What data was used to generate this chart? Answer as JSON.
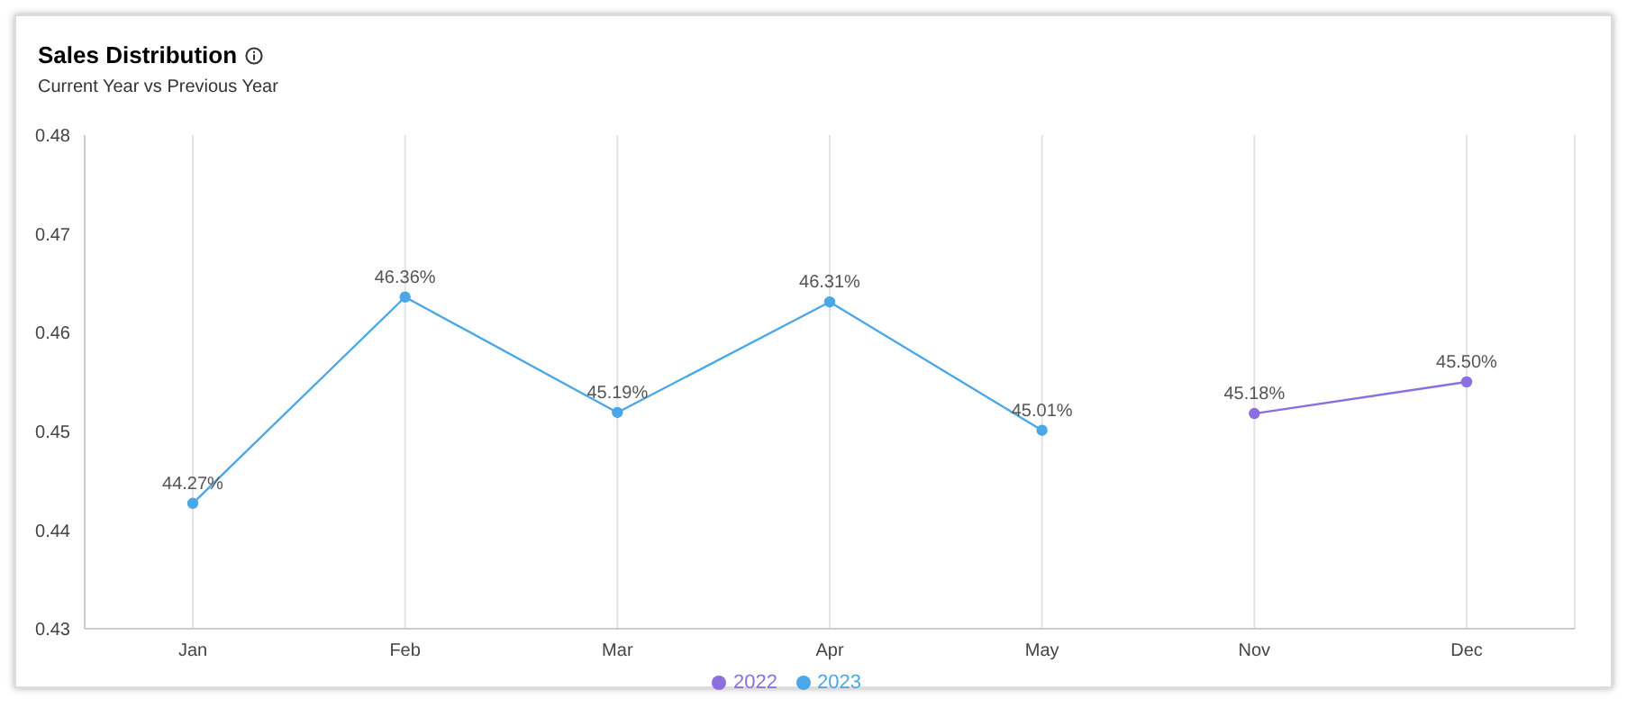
{
  "chart_data": {
    "type": "line",
    "title": "Sales Distribution",
    "subtitle": "Current Year vs Previous Year",
    "categories": [
      "Jan",
      "Feb",
      "Mar",
      "Apr",
      "May",
      "Nov",
      "Dec"
    ],
    "series": [
      {
        "name": "2022",
        "color": "#8b6fe0",
        "values": [
          null,
          null,
          null,
          null,
          null,
          0.4518,
          0.455
        ],
        "value_labels": [
          null,
          null,
          null,
          null,
          null,
          "45.18%",
          "45.50%"
        ]
      },
      {
        "name": "2023",
        "color": "#4aa8e8",
        "values": [
          0.4427,
          0.4636,
          0.4519,
          0.4631,
          0.4501,
          null,
          null
        ],
        "value_labels": [
          "44.27%",
          "46.36%",
          "45.19%",
          "46.31%",
          "45.01%",
          null,
          null
        ]
      }
    ],
    "ylim": [
      0.43,
      0.48
    ],
    "yticks": [
      0.43,
      0.44,
      0.45,
      0.46,
      0.47,
      0.48
    ],
    "grid": "x",
    "legend": "bottom",
    "marker": "circle",
    "line_style": "solid"
  }
}
